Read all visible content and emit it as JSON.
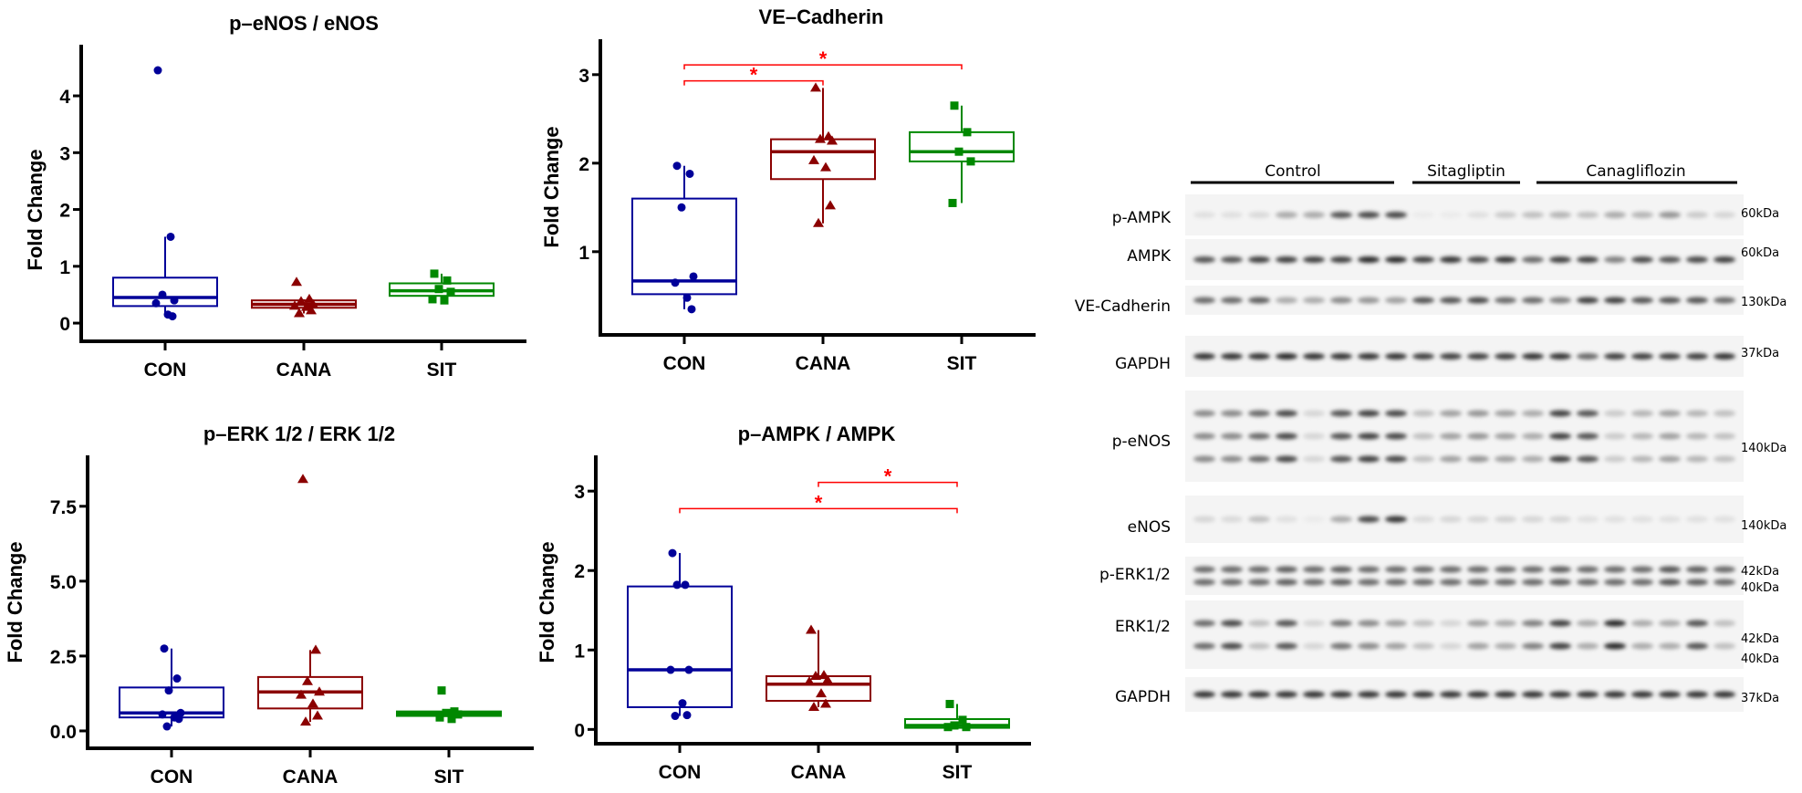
{
  "colors": {
    "CON": "#000099",
    "CANA": "#8b0000",
    "SIT": "#008800",
    "significance": "#ff0000"
  },
  "chart_data": [
    {
      "type": "box",
      "title": "p–eNOS / eNOS",
      "ylabel": "Fold Change",
      "categories": [
        "CON",
        "CANA",
        "SIT"
      ],
      "ylim": [
        -0.32,
        4.9
      ],
      "yticks": [
        0,
        1,
        2,
        3,
        4
      ],
      "ytick_labels": [
        "0",
        "1",
        "2",
        "3",
        "4"
      ],
      "groups": [
        {
          "name": "CON",
          "marker": "circle",
          "values": [
            4.45,
            1.52,
            0.5,
            0.4,
            0.35,
            0.15,
            0.12
          ],
          "q1": 0.3,
          "median": 0.45,
          "q3": 0.8,
          "whisker_low": 0.12,
          "whisker_high": 1.52
        },
        {
          "name": "CANA",
          "marker": "triangle",
          "values": [
            0.72,
            0.42,
            0.38,
            0.33,
            0.3,
            0.28,
            0.22,
            0.17
          ],
          "q1": 0.27,
          "median": 0.33,
          "q3": 0.4,
          "whisker_low": 0.17,
          "whisker_high": 0.42
        },
        {
          "name": "SIT",
          "marker": "square",
          "values": [
            0.87,
            0.75,
            0.6,
            0.55,
            0.42,
            0.4
          ],
          "q1": 0.48,
          "median": 0.57,
          "q3": 0.7,
          "whisker_low": 0.4,
          "whisker_high": 0.87
        }
      ],
      "significance": []
    },
    {
      "type": "box",
      "title": "VE–Cadherin",
      "ylabel": "Fold Change",
      "categories": [
        "CON",
        "CANA",
        "SIT"
      ],
      "ylim": [
        0.06,
        3.4
      ],
      "yticks": [
        1,
        2,
        3
      ],
      "ytick_labels": [
        "1",
        "2",
        "3"
      ],
      "groups": [
        {
          "name": "CON",
          "marker": "circle",
          "values": [
            1.97,
            1.88,
            1.5,
            0.72,
            0.65,
            0.48,
            0.35
          ],
          "q1": 0.52,
          "median": 0.67,
          "q3": 1.6,
          "whisker_low": 0.35,
          "whisker_high": 1.97
        },
        {
          "name": "CANA",
          "marker": "triangle",
          "values": [
            2.85,
            2.3,
            2.27,
            2.25,
            2.03,
            1.95,
            1.52,
            1.32
          ],
          "q1": 1.82,
          "median": 2.13,
          "q3": 2.27,
          "whisker_low": 1.32,
          "whisker_high": 2.85
        },
        {
          "name": "SIT",
          "marker": "square",
          "values": [
            2.65,
            2.35,
            2.13,
            2.02,
            1.55
          ],
          "q1": 2.02,
          "median": 2.13,
          "q3": 2.35,
          "whisker_low": 1.55,
          "whisker_high": 2.65
        }
      ],
      "significance": [
        {
          "from": "CON",
          "to": "CANA",
          "y": 2.93,
          "label": "*"
        },
        {
          "from": "CON",
          "to": "SIT",
          "y": 3.11,
          "label": "*"
        }
      ]
    },
    {
      "type": "box",
      "title": "p–ERK 1/2 / ERK 1/2",
      "ylabel": "Fold Change",
      "categories": [
        "CON",
        "CANA",
        "SIT"
      ],
      "ylim": [
        -0.58,
        9.2
      ],
      "yticks": [
        0,
        2.5,
        5,
        7.5
      ],
      "ytick_labels": [
        "0.0",
        "2.5",
        "5.0",
        "7.5"
      ],
      "groups": [
        {
          "name": "CON",
          "marker": "circle",
          "values": [
            2.75,
            1.75,
            1.35,
            0.6,
            0.55,
            0.45,
            0.4,
            0.15
          ],
          "q1": 0.45,
          "median": 0.6,
          "q3": 1.45,
          "whisker_low": 0.15,
          "whisker_high": 2.75
        },
        {
          "name": "CANA",
          "marker": "triangle",
          "values": [
            8.4,
            2.7,
            1.65,
            1.3,
            1.2,
            0.9,
            0.5,
            0.3
          ],
          "q1": 0.75,
          "median": 1.3,
          "q3": 1.8,
          "whisker_low": 0.3,
          "whisker_high": 2.7
        },
        {
          "name": "SIT",
          "marker": "square",
          "values": [
            1.35,
            0.65,
            0.6,
            0.55,
            0.45,
            0.4
          ],
          "q1": 0.5,
          "median": 0.57,
          "q3": 0.65,
          "whisker_low": 0.4,
          "whisker_high": 0.65
        }
      ],
      "significance": []
    },
    {
      "type": "box",
      "title": "p–AMPK / AMPK",
      "ylabel": "Fold Change",
      "categories": [
        "CON",
        "CANA",
        "SIT"
      ],
      "ylim": [
        -0.18,
        3.45
      ],
      "yticks": [
        0,
        1,
        2,
        3
      ],
      "ytick_labels": [
        "0",
        "1",
        "2",
        "3"
      ],
      "groups": [
        {
          "name": "CON",
          "marker": "circle",
          "values": [
            2.22,
            1.82,
            1.82,
            0.75,
            0.75,
            0.33,
            0.18,
            0.17
          ],
          "q1": 0.28,
          "median": 0.75,
          "q3": 1.8,
          "whisker_low": 0.17,
          "whisker_high": 2.22
        },
        {
          "name": "CANA",
          "marker": "triangle",
          "values": [
            1.25,
            0.68,
            0.67,
            0.62,
            0.6,
            0.45,
            0.32,
            0.28
          ],
          "q1": 0.36,
          "median": 0.57,
          "q3": 0.67,
          "whisker_low": 0.28,
          "whisker_high": 1.25
        },
        {
          "name": "SIT",
          "marker": "square",
          "values": [
            0.32,
            0.12,
            0.05,
            0.03,
            0.03
          ],
          "q1": 0.02,
          "median": 0.05,
          "q3": 0.13,
          "whisker_low": 0.02,
          "whisker_high": 0.32
        }
      ],
      "significance": [
        {
          "from": "CANA",
          "to": "SIT",
          "y": 3.11,
          "label": "*"
        },
        {
          "from": "CON",
          "to": "SIT",
          "y": 2.78,
          "label": "*"
        }
      ]
    }
  ],
  "blot": {
    "groups": [
      {
        "label": "Control",
        "lanes": 8
      },
      {
        "label": "Sitagliptin",
        "lanes": 4
      },
      {
        "label": "Canagliflozin",
        "lanes": 8
      }
    ],
    "rows": [
      {
        "label": "p-AMPK",
        "kda": [
          "60kDa"
        ],
        "bands": [
          0.05,
          0.05,
          0.08,
          0.3,
          0.3,
          0.7,
          0.75,
          0.75,
          0.0,
          0.0,
          0.05,
          0.15,
          0.2,
          0.25,
          0.2,
          0.3,
          0.25,
          0.4,
          0.15,
          0.1
        ]
      },
      {
        "label": "AMPK",
        "kda": [
          "60kDa"
        ],
        "bands": [
          0.7,
          0.7,
          0.8,
          0.8,
          0.8,
          0.8,
          0.9,
          0.9,
          0.8,
          0.85,
          0.75,
          0.85,
          0.6,
          0.8,
          0.8,
          0.5,
          0.75,
          0.7,
          0.75,
          0.8
        ]
      },
      {
        "label": "VE-Cadherin",
        "kda": [
          "130kDa"
        ],
        "bands": [
          0.6,
          0.6,
          0.65,
          0.3,
          0.3,
          0.45,
          0.4,
          0.35,
          0.7,
          0.7,
          0.75,
          0.6,
          0.6,
          0.5,
          0.8,
          0.8,
          0.7,
          0.7,
          0.7,
          0.6
        ]
      },
      {
        "label": "GAPDH",
        "kda": [
          "37kDa"
        ],
        "bands": [
          0.85,
          0.85,
          0.85,
          0.9,
          0.85,
          0.85,
          0.85,
          0.85,
          0.8,
          0.8,
          0.8,
          0.8,
          0.85,
          0.85,
          0.6,
          0.8,
          0.8,
          0.8,
          0.8,
          0.85
        ]
      },
      {
        "label": "p-eNOS",
        "kda": [
          "140kDa"
        ],
        "bands": [
          0.45,
          0.45,
          0.6,
          0.75,
          0.1,
          0.7,
          0.8,
          0.75,
          0.2,
          0.35,
          0.4,
          0.35,
          0.3,
          0.8,
          0.7,
          0.15,
          0.25,
          0.35,
          0.25,
          0.2
        ]
      },
      {
        "label": "eNOS",
        "kda": [
          "140kDa"
        ],
        "bands": [
          0.1,
          0.08,
          0.2,
          0.05,
          0.0,
          0.3,
          0.75,
          0.85,
          0.08,
          0.1,
          0.1,
          0.12,
          0.1,
          0.1,
          0.05,
          0.05,
          0.05,
          0.05,
          0.05,
          0.05
        ]
      },
      {
        "label": "p-ERK1/2",
        "kda": [
          "42kDa",
          "40kDa"
        ],
        "bands": [
          0.6,
          0.6,
          0.6,
          0.65,
          0.6,
          0.65,
          0.6,
          0.6,
          0.6,
          0.6,
          0.6,
          0.6,
          0.6,
          0.65,
          0.6,
          0.6,
          0.6,
          0.7,
          0.65,
          0.6
        ]
      },
      {
        "label": "ERK1/2",
        "kda": [
          "42kDa",
          "40kDa"
        ],
        "bands": [
          0.6,
          0.75,
          0.2,
          0.7,
          0.1,
          0.55,
          0.45,
          0.35,
          0.2,
          0.1,
          0.35,
          0.3,
          0.5,
          0.8,
          0.3,
          0.9,
          0.3,
          0.3,
          0.7,
          0.2
        ]
      },
      {
        "label": "GAPDH",
        "kda": [
          "37kDa"
        ],
        "bands": [
          0.85,
          0.85,
          0.85,
          0.85,
          0.85,
          0.85,
          0.85,
          0.85,
          0.85,
          0.85,
          0.85,
          0.85,
          0.85,
          0.85,
          0.85,
          0.85,
          0.85,
          0.85,
          0.85,
          0.85
        ]
      }
    ]
  }
}
